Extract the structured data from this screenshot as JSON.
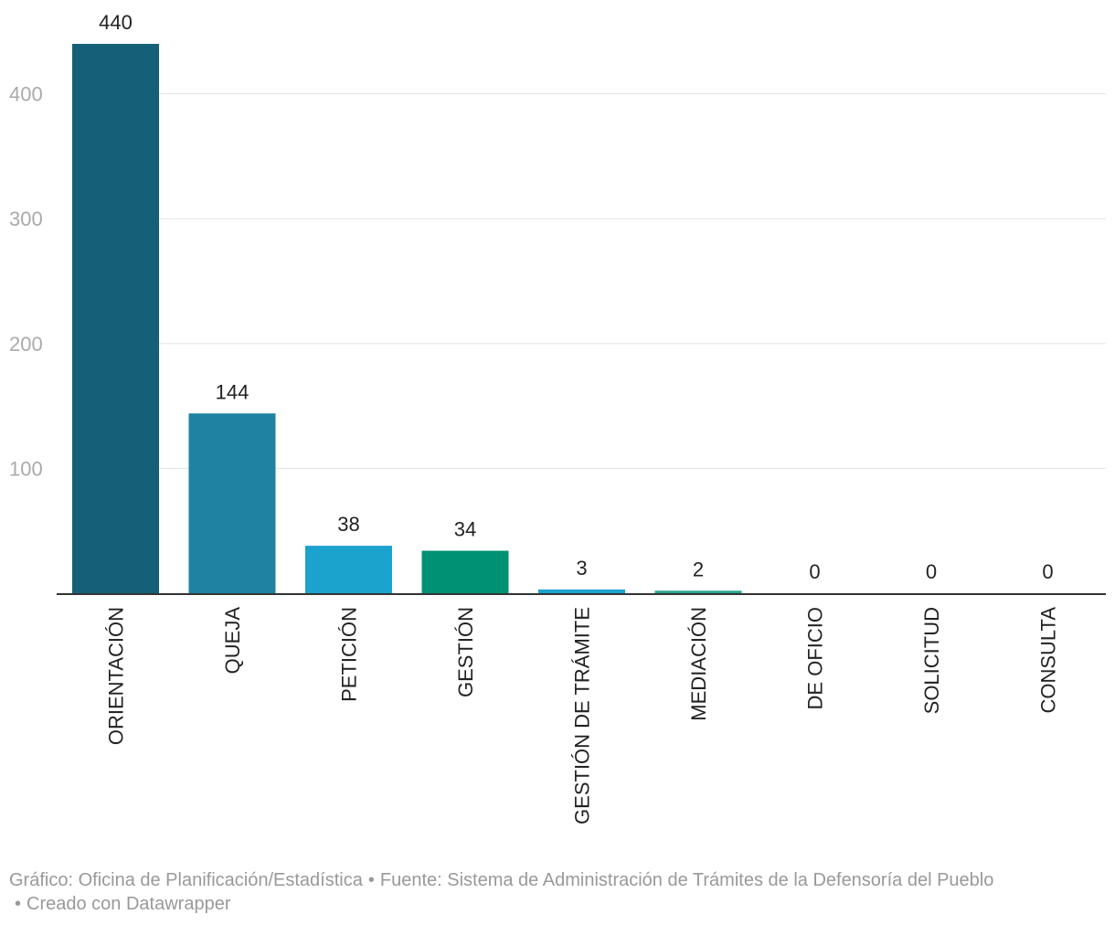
{
  "chart_data": {
    "type": "bar",
    "categories": [
      "ORIENTACIÓN",
      "QUEJA",
      "PETICIÓN",
      "GESTIÓN",
      "GESTIÓN DE TRÁMITE",
      "MEDIACIÓN",
      "DE OFICIO",
      "SOLICITUD",
      "CONSULTA"
    ],
    "values": [
      440,
      144,
      38,
      34,
      3,
      2,
      0,
      0,
      0
    ],
    "colors": [
      "#165f78",
      "#1f82a2",
      "#1ba2cd",
      "#009074",
      "#1ba2cd",
      "#27a58f",
      "#165f78",
      "#165f78",
      "#165f78"
    ],
    "ylim": [
      0,
      440
    ],
    "yticks": [
      100,
      200,
      300,
      400
    ],
    "grid": true,
    "legend": "none"
  },
  "footer": {
    "graphic": "Gráfico: Oficina de Planificación/Estadística",
    "source": "Fuente: Sistema de Administración de Trámites de la Defensoría del Pueblo",
    "credit": "Creado con Datawrapper",
    "separator": "•"
  }
}
